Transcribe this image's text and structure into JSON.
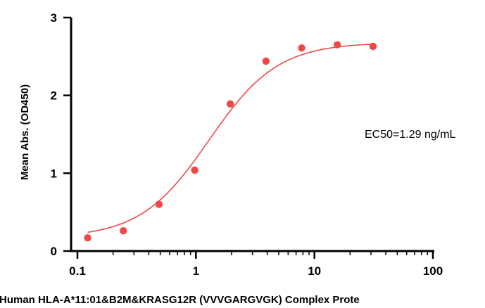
{
  "chart_data": {
    "type": "scatter",
    "x_scale": "log",
    "xlim": [
      0.1,
      100
    ],
    "ylim": [
      0,
      3
    ],
    "x_ticks": [
      "0.1",
      "1",
      "10",
      "100"
    ],
    "y_ticks": [
      "0",
      "1",
      "2",
      "3"
    ],
    "ylabel": "Mean Abs. (OD450)",
    "xlabel": "Human HLA-A*11:01&B2M&KRASG12R (VVVGARGVGK) Complex Prote",
    "top_text": "",
    "annotation": "EC50=1.29 ng/mL",
    "grid": false,
    "color": "#f04848",
    "series": [
      {
        "x": [
          0.122,
          0.244,
          0.488,
          0.977,
          1.95,
          3.9,
          7.81,
          15.6,
          31.25
        ],
        "y": [
          0.17,
          0.26,
          0.6,
          1.04,
          1.89,
          2.44,
          2.61,
          2.65,
          2.63
        ]
      }
    ],
    "fit": {
      "bottom": 0.17,
      "top": 2.68,
      "ec50": 1.29,
      "hill": 1.5
    }
  }
}
